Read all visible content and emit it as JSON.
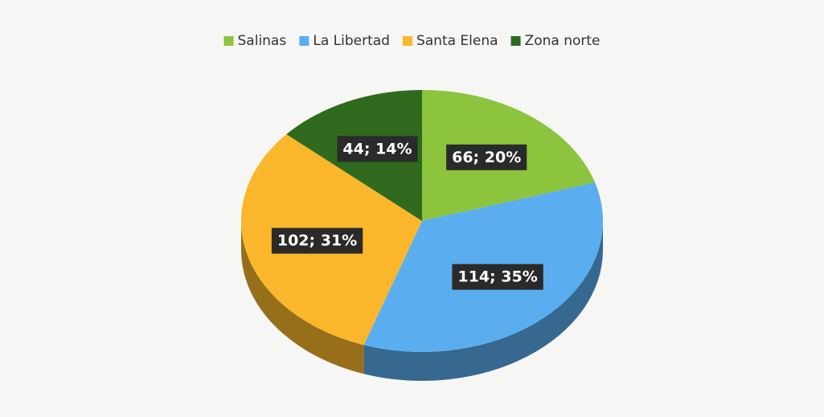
{
  "chart_data": {
    "type": "pie",
    "categories": [
      "Salinas",
      "La Libertad",
      "Santa Elena",
      "Zona norte"
    ],
    "values": [
      66,
      114,
      102,
      44
    ],
    "value_labels": [
      "66; 20%",
      "114; 35%",
      "102; 31%",
      "44; 14%"
    ],
    "colors": [
      "#8cc43e",
      "#5aaef0",
      "#fbb72b",
      "#2f6a1e"
    ],
    "legend": "top",
    "three_d": true
  }
}
